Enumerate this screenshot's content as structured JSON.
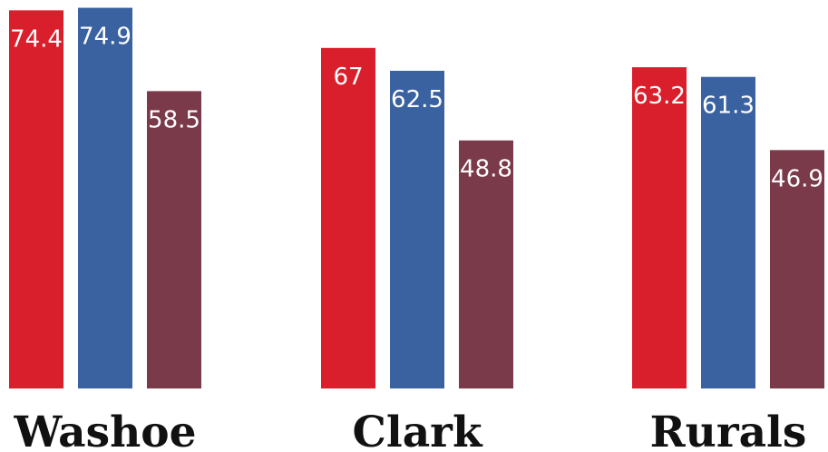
{
  "chart_data": {
    "type": "bar",
    "categories": [
      "Washoe",
      "Clark",
      "Rurals"
    ],
    "series": [
      {
        "values": [
          74.4,
          67,
          63.2
        ],
        "color": "#d91f2b"
      },
      {
        "values": [
          74.9,
          62.5,
          61.3
        ],
        "color": "#3a62a0"
      },
      {
        "values": [
          58.5,
          48.8,
          46.9
        ],
        "color": "#7b3a4a"
      }
    ],
    "value_labels": [
      [
        "74.4",
        "67",
        "63.2"
      ],
      [
        "74.9",
        "62.5",
        "61.3"
      ],
      [
        "58.5",
        "48.8",
        "46.9"
      ]
    ],
    "ylim": [
      0,
      75
    ],
    "grid": false,
    "legend": "none"
  }
}
